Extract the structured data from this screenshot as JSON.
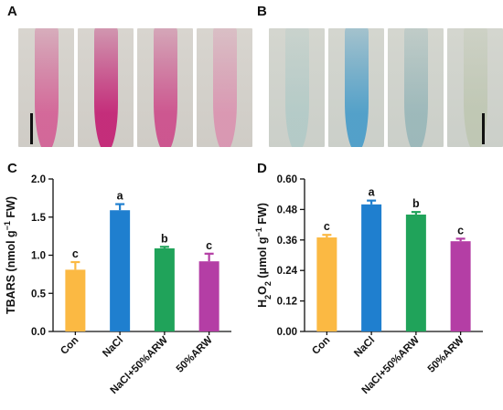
{
  "panels": {
    "A": "A",
    "B": "B",
    "C": "C",
    "D": "D"
  },
  "photos": {
    "A": [
      {
        "color": "#d43f86",
        "intensity": 0.55
      },
      {
        "color": "#c42878",
        "intensity": 0.95
      },
      {
        "color": "#cc3a82",
        "intensity": 0.7
      },
      {
        "color": "#de7aa6",
        "intensity": 0.45
      }
    ],
    "B": [
      {
        "color": "#a9c8c6",
        "intensity": 0.5
      },
      {
        "color": "#4f9fc9",
        "intensity": 0.95
      },
      {
        "color": "#8fb2b6",
        "intensity": 0.65
      },
      {
        "color": "#b9c3a9",
        "intensity": 0.5
      }
    ]
  },
  "chart_data": [
    {
      "type": "bar",
      "panel": "C",
      "categories": [
        "Con",
        "NaCl",
        "NaCl+50%ARW",
        "50%ARW"
      ],
      "values": [
        0.81,
        1.59,
        1.09,
        0.92
      ],
      "errors": [
        0.1,
        0.08,
        0.02,
        0.1
      ],
      "letters": [
        "c",
        "a",
        "b",
        "c"
      ],
      "colors": [
        "#fbb943",
        "#1f7fcf",
        "#20a35a",
        "#b43ea5"
      ],
      "ylabel_main": "TBARS (nmol g",
      "ylabel_sup": "−1",
      "ylabel_tail": " FW)",
      "ylim": [
        0.0,
        2.0
      ],
      "yticks": [
        "0.0",
        "0.5",
        "1.0",
        "1.5",
        "2.0"
      ],
      "ytick_values": [
        0.0,
        0.5,
        1.0,
        1.5,
        2.0
      ]
    },
    {
      "type": "bar",
      "panel": "D",
      "categories": [
        "Con",
        "NaCl",
        "NaCl+50%ARW",
        "50%ARW"
      ],
      "values": [
        0.37,
        0.5,
        0.46,
        0.355
      ],
      "errors": [
        0.01,
        0.015,
        0.01,
        0.01
      ],
      "letters": [
        "c",
        "a",
        "b",
        "c"
      ],
      "colors": [
        "#fbb943",
        "#1f7fcf",
        "#20a35a",
        "#b43ea5"
      ],
      "ylabel_main": "H",
      "ylabel_sub": "2",
      "ylabel_mid": "O",
      "ylabel_sub2": "2",
      "ylabel_rest": " (μmol g",
      "ylabel_sup": "−1",
      "ylabel_tail": " FW)",
      "ylim": [
        0.0,
        0.6
      ],
      "yticks": [
        "0.00",
        "0.12",
        "0.24",
        "0.36",
        "0.48",
        "0.60"
      ],
      "ytick_values": [
        0.0,
        0.12,
        0.24,
        0.36,
        0.48,
        0.6
      ]
    }
  ]
}
